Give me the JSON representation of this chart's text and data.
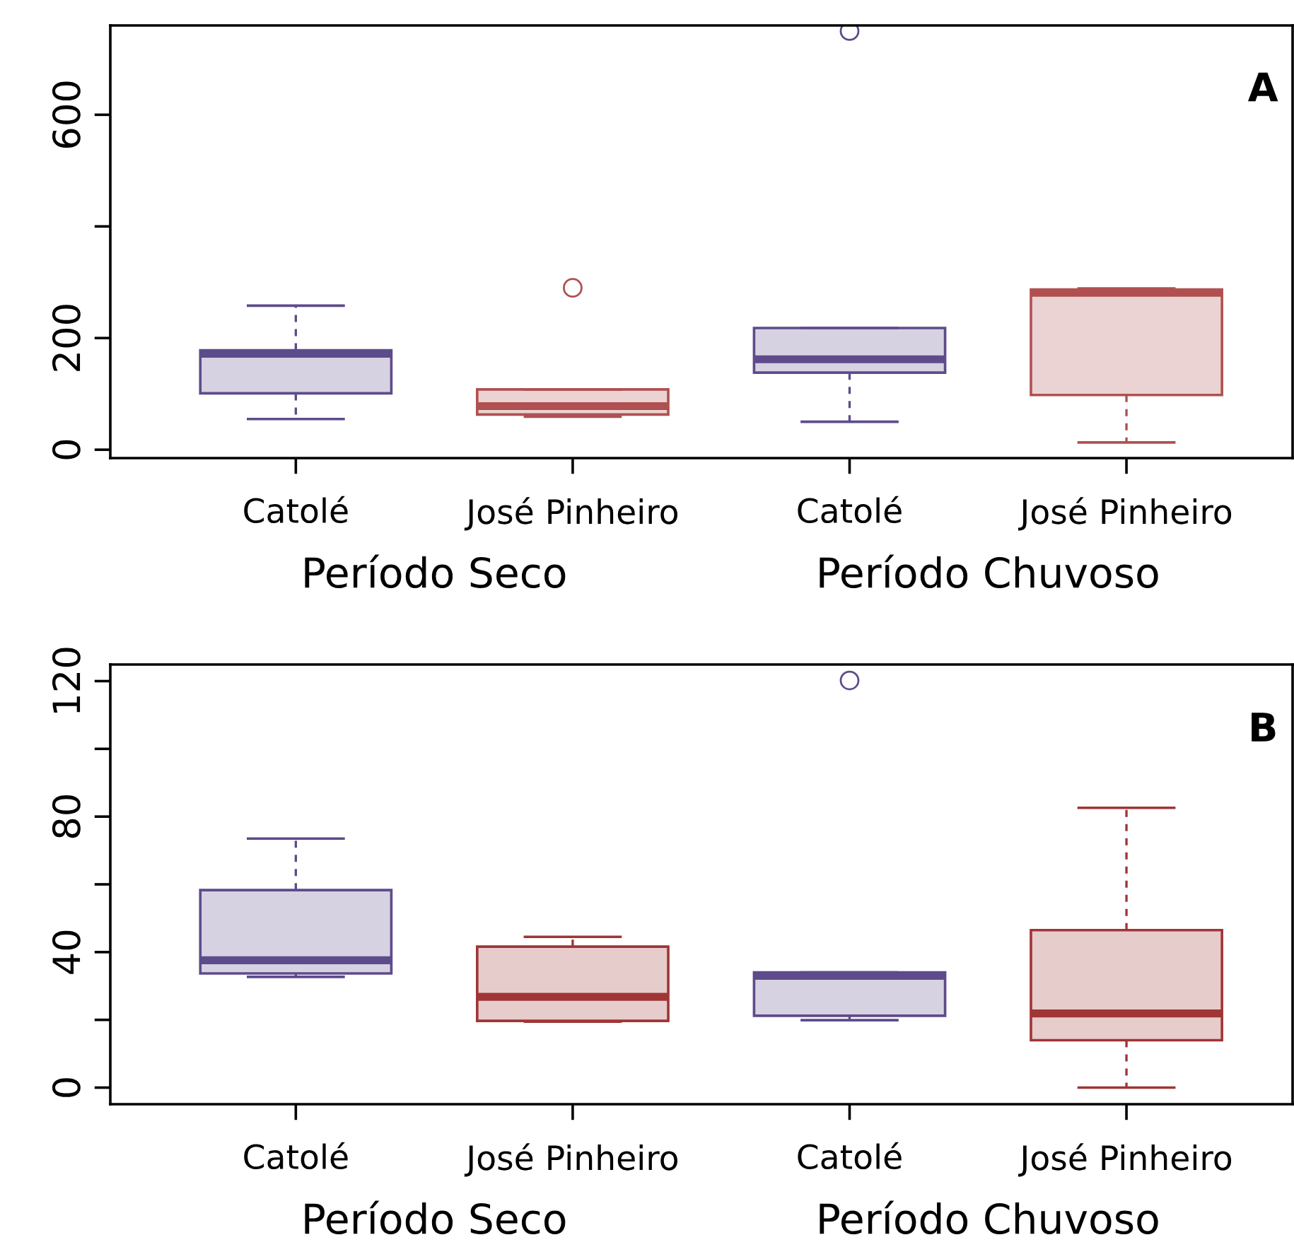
{
  "chart_data": [
    {
      "type": "box",
      "categories": [
        "Catolé",
        "José Pinheiro",
        "Catolé",
        "José Pinheiro"
      ],
      "colors": [
        "#5e4b8b",
        "#b05050",
        "#5e4b8b",
        "#b05050"
      ],
      "boxes": [
        {
          "low": 55,
          "q1": 101,
          "median": 172,
          "q3": 178,
          "high": 258
        },
        {
          "low": 59,
          "q1": 63,
          "median": 78,
          "q3": 108,
          "high": 108,
          "outliers": [
            290
          ]
        },
        {
          "low": 50,
          "q1": 138,
          "median": 162,
          "q3": 218,
          "high": 218,
          "outliers": [
            750
          ]
        },
        {
          "low": 13,
          "q1": 98,
          "median": 281,
          "q3": 287,
          "high": 289
        }
      ],
      "ylim": [
        -15,
        760
      ],
      "yticks": [
        0,
        200,
        {
          "value": 400,
          "label": null
        },
        600
      ],
      "grid": false,
      "annotations": [
        "Período Seco",
        "Período Chuvoso",
        "A"
      ]
    },
    {
      "type": "box",
      "categories": [
        "Catolé",
        "José Pinheiro",
        "Catolé",
        "José Pinheiro"
      ],
      "colors": [
        "#5e4b8b",
        "#a03535",
        "#5e4b8b",
        "#a03535"
      ],
      "boxes": [
        {
          "low": 32.7,
          "q1": 33.7,
          "median": 37.6,
          "q3": 58.3,
          "high": 73.5
        },
        {
          "low": 19.5,
          "q1": 19.7,
          "median": 26.8,
          "q3": 41.6,
          "high": 44.5
        },
        {
          "low": 19.9,
          "q1": 21.2,
          "median": 33,
          "q3": 34,
          "high": 34,
          "outliers": [
            120.2
          ]
        },
        {
          "low": 0,
          "q1": 14,
          "median": 21.9,
          "q3": 46.5,
          "high": 82.6
        }
      ],
      "ylim": [
        -4.9,
        124.9
      ],
      "yticks": [
        0,
        {
          "value": 20,
          "label": null
        },
        40,
        {
          "value": 60,
          "label": null
        },
        80,
        {
          "value": 100,
          "label": null
        },
        120
      ],
      "grid": false,
      "annotations": [
        "Período Seco",
        "Período Chuvoso",
        "B"
      ]
    }
  ]
}
